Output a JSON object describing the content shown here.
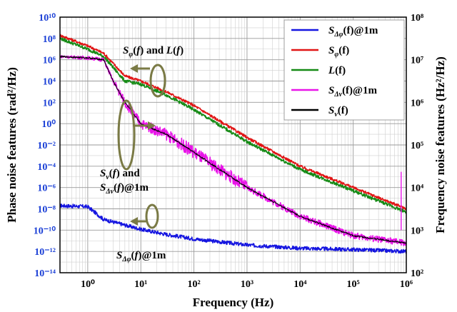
{
  "chart_data": {
    "type": "line",
    "xlabel": "Frequency (Hz)",
    "ylabel_left": "Phase noise features (rad²/Hz)",
    "ylabel_right": "Frequency noise features (Hz²/Hz)",
    "xscale": "log",
    "yscale": "log",
    "xlim": [
      0.3,
      1000000
    ],
    "ylim_left": [
      1e-14,
      10000000000.0
    ],
    "ylim_right": [
      100,
      100000000
    ],
    "x_ticks": [
      "10⁰",
      "10¹",
      "10²",
      "10³",
      "10⁴",
      "10⁵",
      "10⁶"
    ],
    "x_tick_values": [
      1,
      10,
      100,
      1000,
      10000,
      100000,
      1000000
    ],
    "y_ticks_left": [
      "10⁻¹⁴",
      "10⁻¹²",
      "10⁻¹⁰",
      "10⁻⁸",
      "10⁻⁶",
      "10⁻⁴",
      "10⁻²",
      "10⁰",
      "10²",
      "10⁴",
      "10⁶",
      "10⁸",
      "10¹⁰"
    ],
    "y_tick_exps_left": [
      -14,
      -12,
      -10,
      -8,
      -6,
      -4,
      -2,
      0,
      2,
      4,
      6,
      8,
      10
    ],
    "y_ticks_right": [
      "10²",
      "10³",
      "10⁴",
      "10⁵",
      "10⁶",
      "10⁷",
      "10⁸"
    ],
    "y_tick_exps_right": [
      2,
      3,
      4,
      5,
      6,
      7,
      8
    ],
    "grid": true,
    "legend_position": "top-right",
    "series": [
      {
        "name": "SΔφ(f)@1m",
        "color": "#1515e0",
        "axis": "left",
        "noise": 0.35,
        "points": [
          [
            0.3,
            2e-08
          ],
          [
            1,
            1.6e-08
          ],
          [
            2,
            1e-09
          ],
          [
            5,
            3e-10
          ],
          [
            10,
            1.2e-10
          ],
          [
            30,
            4e-11
          ],
          [
            100,
            1.5e-11
          ],
          [
            1000,
            4e-12
          ],
          [
            10000,
            2e-12
          ],
          [
            100000,
            1.5e-12
          ],
          [
            1000000,
            1e-12
          ]
        ]
      },
      {
        "name": "Sφ(f)",
        "color": "#e01515",
        "axis": "left",
        "noise": 0.25,
        "points": [
          [
            0.3,
            200000000.0
          ],
          [
            1,
            20000000.0
          ],
          [
            2,
            4000000.0
          ],
          [
            5,
            30000.0
          ],
          [
            10,
            10000.0
          ],
          [
            30,
            1000.0
          ],
          [
            100,
            50.0
          ],
          [
            1000,
            0.05
          ],
          [
            10000,
            0.0001
          ],
          [
            100000,
            1e-06
          ],
          [
            1000000,
            1e-08
          ]
        ]
      },
      {
        "name": "L(f)",
        "color": "#158a15",
        "axis": "left",
        "noise": 0.3,
        "points": [
          [
            0.3,
            100000000.0
          ],
          [
            1,
            10000000.0
          ],
          [
            2,
            2000000.0
          ],
          [
            5,
            10000.0
          ],
          [
            10,
            5000.0
          ],
          [
            30,
            500.0
          ],
          [
            100,
            20.0
          ],
          [
            1000,
            0.02
          ],
          [
            10000,
            5e-05
          ],
          [
            100000,
            5e-07
          ],
          [
            1000000,
            5e-09
          ]
        ]
      },
      {
        "name": "SΔν(f)@1m",
        "color": "#e815e8",
        "axis": "left",
        "noise": 0.6,
        "points": [
          [
            0.3,
            2000000.0
          ],
          [
            1,
            1500000.0
          ],
          [
            2,
            1000000.0
          ],
          [
            3,
            10000.0
          ],
          [
            5,
            100.0
          ],
          [
            10,
            1
          ],
          [
            30,
            0.1
          ],
          [
            100,
            0.002
          ],
          [
            1000,
            1e-06
          ],
          [
            10000,
            2e-09
          ],
          [
            100000,
            3e-11
          ],
          [
            1000000,
            6e-12
          ]
        ]
      },
      {
        "name": "Sν(f)",
        "color": "#000000",
        "axis": "left",
        "noise": 0.15,
        "points": [
          [
            0.3,
            2000000.0
          ],
          [
            1,
            1500000.0
          ],
          [
            2,
            1000000.0
          ],
          [
            3,
            10000.0
          ],
          [
            5,
            100.0
          ],
          [
            10,
            1
          ],
          [
            30,
            0.1
          ],
          [
            100,
            0.002
          ],
          [
            1000,
            1e-06
          ],
          [
            10000,
            2e-09
          ],
          [
            100000,
            3e-11
          ],
          [
            1000000,
            6e-12
          ]
        ]
      }
    ],
    "annotations": [
      {
        "name": "phi-L",
        "text": "Sφ(f) and L(f)"
      },
      {
        "name": "nu",
        "line1": "Sν(f) and",
        "line2": "SΔν(f)@1m"
      },
      {
        "name": "dphi",
        "text": "SΔφ(f)@1m"
      }
    ]
  },
  "legend": [
    {
      "base": "S",
      "sub": "Δφ",
      "rest": "(f)@1m",
      "color": "#1515e0"
    },
    {
      "base": "S",
      "sub": "φ",
      "rest": "(f)",
      "color": "#e01515"
    },
    {
      "base": "L",
      "sub": "",
      "rest": "(f)",
      "color": "#158a15"
    },
    {
      "base": "S",
      "sub": "Δν",
      "rest": "(f)@1m",
      "color": "#e815e8"
    },
    {
      "base": "S",
      "sub": "ν",
      "rest": "(f)",
      "color": "#000000"
    }
  ]
}
